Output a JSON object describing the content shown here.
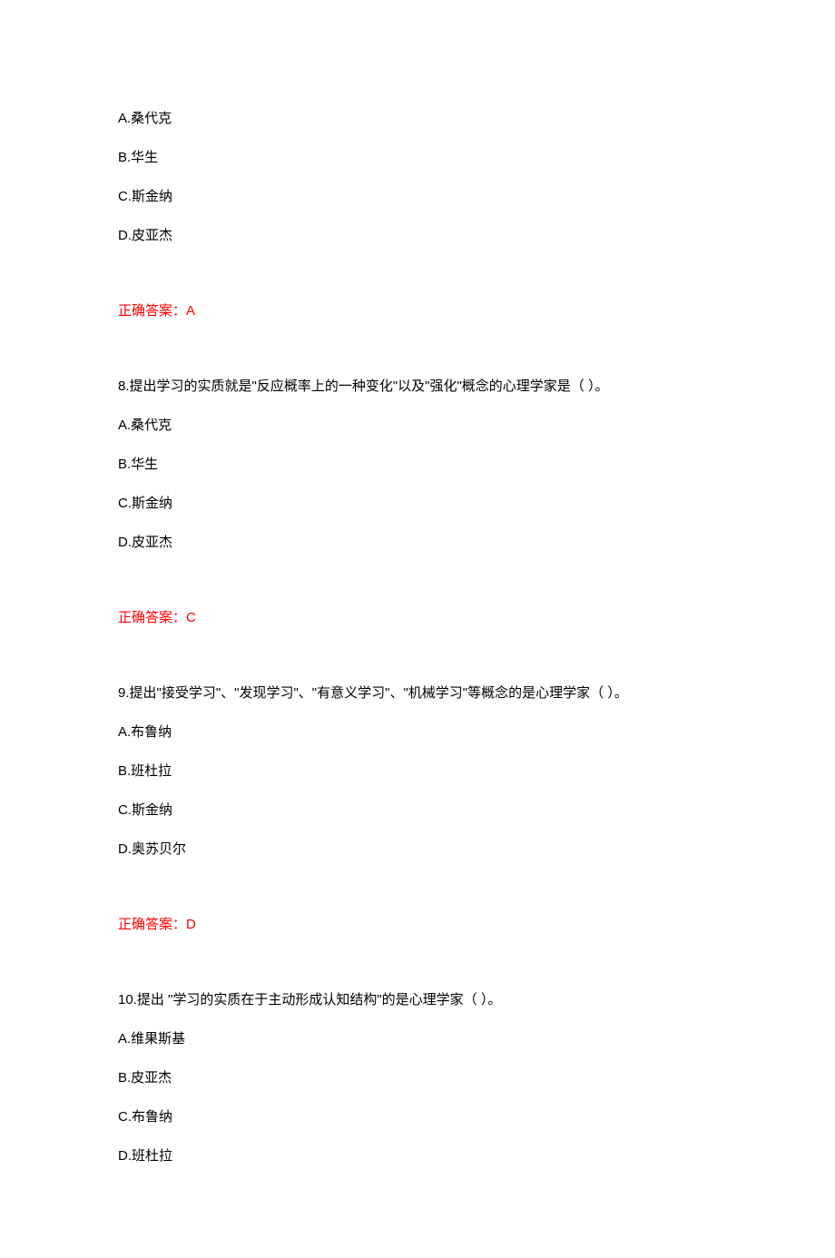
{
  "q7": {
    "options": {
      "a": "A.桑代克",
      "b": "B.华生",
      "c": "C.斯金纳",
      "d": "D.皮亚杰"
    },
    "answer": "正确答案：A"
  },
  "q8": {
    "stem": "8.提出学习的实质就是\"反应概率上的一种变化\"以及\"强化\"概念的心理学家是（ ）。",
    "options": {
      "a": "A.桑代克",
      "b": "B.华生",
      "c": "C.斯金纳",
      "d": "D.皮亚杰"
    },
    "answer": "正确答案：C"
  },
  "q9": {
    "stem": "9.提出\"接受学习\"、\"发现学习\"、\"有意义学习\"、\"机械学习\"等概念的是心理学家（ ）。",
    "options": {
      "a": "A.布鲁纳",
      "b": "B.班杜拉",
      "c": "C.斯金纳",
      "d": "D.奥苏贝尔"
    },
    "answer": "正确答案：D"
  },
  "q10": {
    "stem": "10.提出 \"学习的实质在于主动形成认知结构\"的是心理学家（ ）。",
    "options": {
      "a": "A.维果斯基",
      "b": "B.皮亚杰",
      "c": "C.布鲁纳",
      "d": "D.班杜拉"
    }
  }
}
